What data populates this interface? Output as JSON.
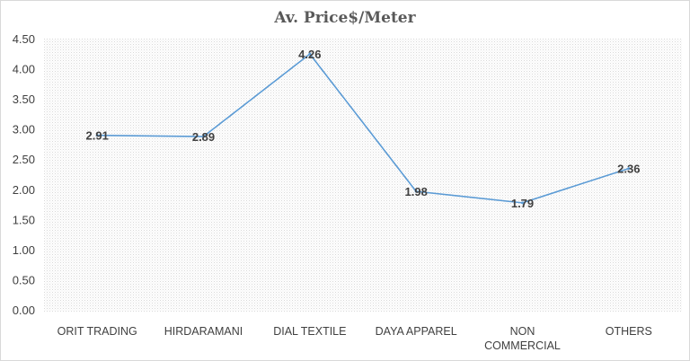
{
  "chart_data": {
    "type": "line",
    "title": "Av. Price$/Meter",
    "xlabel": "",
    "ylabel": "",
    "categories": [
      "ORIT TRADING",
      "HIRDARAMANI",
      "DIAL TEXTILE",
      "DAYA APPAREL",
      "NON COMMERCIAL",
      "OTHERS"
    ],
    "category_lines": [
      [
        "ORIT TRADING"
      ],
      [
        "HIRDARAMANI"
      ],
      [
        "DIAL TEXTILE"
      ],
      [
        "DAYA APPAREL"
      ],
      [
        "NON",
        "COMMERCIAL"
      ],
      [
        "OTHERS"
      ]
    ],
    "series": [
      {
        "values": [
          2.91,
          2.89,
          4.26,
          1.98,
          1.79,
          2.36
        ],
        "color": "#5b9bd5"
      }
    ],
    "data_labels": [
      "2.91",
      "2.89",
      "4.26",
      "1.98",
      "1.79",
      "2.36"
    ],
    "ylim": [
      0,
      4.5
    ],
    "yticks": [
      "0.00",
      "0.50",
      "1.00",
      "1.50",
      "2.00",
      "2.50",
      "3.00",
      "3.50",
      "4.00",
      "4.50"
    ],
    "grid": false,
    "legend": "none",
    "plot_background": "dotted light gray texture"
  }
}
